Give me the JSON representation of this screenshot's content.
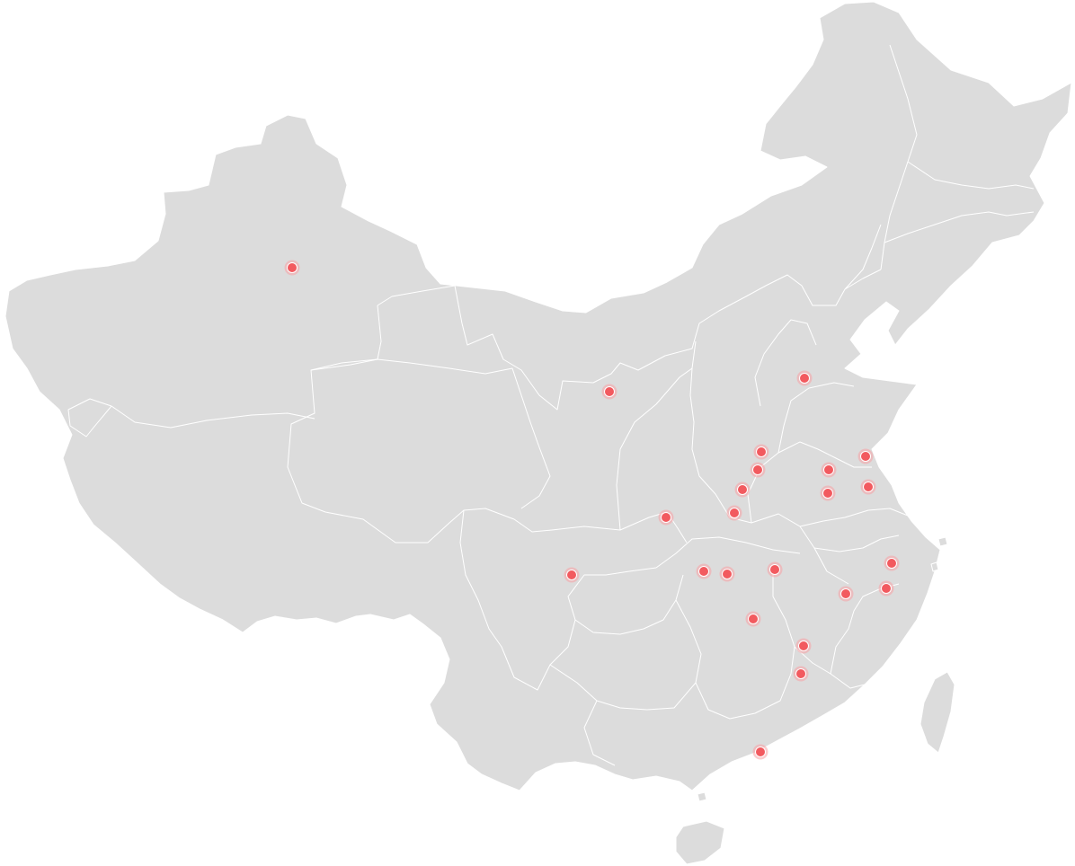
{
  "map": {
    "colors": {
      "land": "#dcdcdc",
      "border": "#ffffff",
      "marker": "#f25a5f",
      "marker_ring": "#f7a3a6",
      "background": "#ffffff"
    },
    "markers": [
      {
        "id": "urumqi"
      },
      {
        "id": "yinchuan"
      },
      {
        "id": "beijing"
      },
      {
        "id": "lianyungang"
      },
      {
        "id": "jiaozuo"
      },
      {
        "id": "zhengzhou"
      },
      {
        "id": "xuchang"
      },
      {
        "id": "xuzhou"
      },
      {
        "id": "yancheng"
      },
      {
        "id": "suqian"
      },
      {
        "id": "xiangcheng"
      },
      {
        "id": "shiyan"
      },
      {
        "id": "chengdu"
      },
      {
        "id": "jingmen"
      },
      {
        "id": "yichang"
      },
      {
        "id": "wuhan"
      },
      {
        "id": "hangzhou"
      },
      {
        "id": "jinhua"
      },
      {
        "id": "shangrao"
      },
      {
        "id": "changsha"
      },
      {
        "id": "ganzhou"
      },
      {
        "id": "ji-an"
      },
      {
        "id": "guangzhou"
      }
    ]
  }
}
